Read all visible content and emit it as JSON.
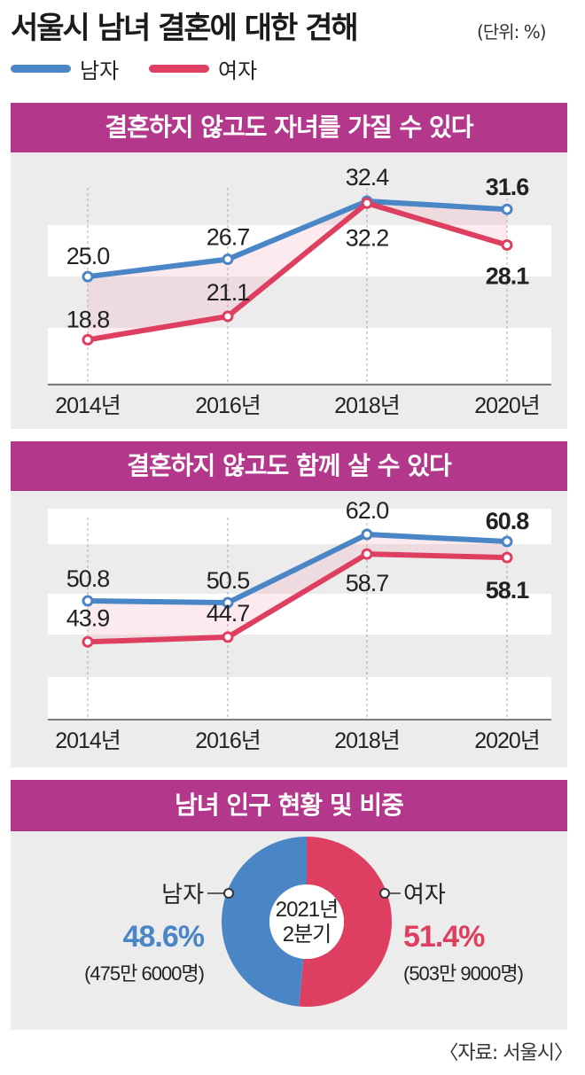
{
  "header": {
    "title": "서울시 남녀 결혼에 대한 견해",
    "unit": "(단위: %)"
  },
  "legend": [
    {
      "name": "남자",
      "color": "#4a86c5"
    },
    {
      "name": "여자",
      "color": "#de3f61"
    }
  ],
  "chart_data": [
    {
      "type": "line",
      "title": "결혼하지 않고도 자녀를 가질 수 있다",
      "categories": [
        "2014년",
        "2016년",
        "2018년",
        "2020년"
      ],
      "series": [
        {
          "name": "남자",
          "values": [
            25.0,
            26.7,
            32.4,
            31.6
          ],
          "labels": [
            "25.0",
            "26.7",
            "32.4",
            "31.6"
          ]
        },
        {
          "name": "여자",
          "values": [
            18.8,
            21.1,
            32.2,
            28.1
          ],
          "labels": [
            "18.8",
            "21.1",
            "32.2",
            "28.1"
          ]
        }
      ]
    },
    {
      "type": "line",
      "title": "결혼하지 않고도 함께 살 수 있다",
      "categories": [
        "2014년",
        "2016년",
        "2018년",
        "2020년"
      ],
      "series": [
        {
          "name": "남자",
          "values": [
            50.8,
            50.5,
            62.0,
            60.8
          ],
          "labels": [
            "50.8",
            "50.5",
            "62.0",
            "60.8"
          ]
        },
        {
          "name": "여자",
          "values": [
            43.9,
            44.7,
            58.7,
            58.1
          ],
          "labels": [
            "43.9",
            "44.7",
            "58.7",
            "58.1"
          ]
        }
      ]
    },
    {
      "type": "pie",
      "title": "남녀 인구 현황 및 비중",
      "center_label": [
        "2021년",
        "2분기"
      ],
      "slices": [
        {
          "name": "남자",
          "value": 48.6,
          "pct_label": "48.6%",
          "count_label": "(475만 6000명)",
          "color": "#4a86c5"
        },
        {
          "name": "여자",
          "value": 51.4,
          "pct_label": "51.4%",
          "count_label": "(503만 9000명)",
          "color": "#de3f61"
        }
      ]
    }
  ],
  "footer": {
    "source": "〈자료: 서울시〉"
  }
}
